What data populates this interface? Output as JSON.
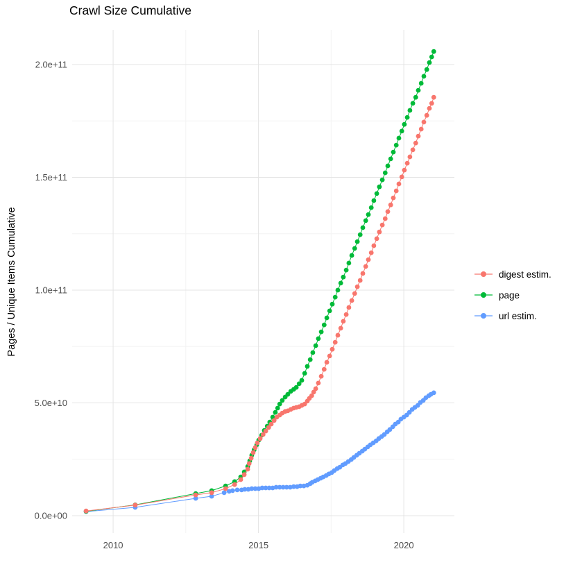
{
  "title": "Crawl Size Cumulative",
  "y_axis_title": "Pages / Unique Items Cumulative",
  "chart_data": {
    "type": "line",
    "title": "Crawl Size Cumulative",
    "xlabel": "",
    "ylabel": "Pages / Unique Items Cumulative",
    "xlim": [
      2008.59,
      2021.74
    ],
    "ylim": [
      -7700000000.0,
      215400000000.0
    ],
    "grid": true,
    "legend_position": "right",
    "marker": "point",
    "x_ticks": [
      {
        "value": 2010,
        "label": "2010"
      },
      {
        "value": 2015,
        "label": "2015"
      },
      {
        "value": 2020,
        "label": "2020"
      }
    ],
    "x_minor_ticks": [
      2012.5,
      2017.5
    ],
    "y_ticks": [
      {
        "value": 0,
        "label": "0.0e+00"
      },
      {
        "value": 50000000000.0,
        "label": "5.0e+10"
      },
      {
        "value": 100000000000.0,
        "label": "1.0e+11"
      },
      {
        "value": 150000000000.0,
        "label": "1.5e+11"
      },
      {
        "value": 200000000000.0,
        "label": "2.0e+11"
      }
    ],
    "y_minor_ticks": [
      25000000000.0,
      75000000000.0,
      125000000000.0,
      175000000000.0
    ],
    "colors": {
      "grid_major": "#E4E4E4",
      "grid_minor": "#F3F3F3",
      "tick_text": "#4D4D4D",
      "text": "#000000"
    },
    "series": [
      {
        "name": "digest estim.",
        "color": "#F8766D",
        "points": [
          [
            2009.07,
            2100000000.0
          ],
          [
            2010.76,
            4700000000.0
          ],
          [
            2012.84,
            9200000000.0
          ],
          [
            2013.39,
            10200000000.0
          ],
          [
            2013.87,
            12000000000.0
          ],
          [
            2014.18,
            13800000000.0
          ],
          [
            2014.39,
            16000000000.0
          ],
          [
            2014.51,
            18200000000.0
          ],
          [
            2014.63,
            20600000000.0
          ],
          [
            2014.68,
            23100000000.0
          ],
          [
            2014.75,
            25500000000.0
          ],
          [
            2014.82,
            28000000000.0
          ],
          [
            2014.89,
            30200000000.0
          ],
          [
            2014.96,
            32300000000.0
          ],
          [
            2015.06,
            34200000000.0
          ],
          [
            2015.16,
            36000000000.0
          ],
          [
            2015.25,
            37500000000.0
          ],
          [
            2015.35,
            39100000000.0
          ],
          [
            2015.44,
            40600000000.0
          ],
          [
            2015.54,
            42200000000.0
          ],
          [
            2015.63,
            43700000000.0
          ],
          [
            2015.73,
            44600000000.0
          ],
          [
            2015.82,
            45500000000.0
          ],
          [
            2015.92,
            46200000000.0
          ],
          [
            2016.01,
            46500000000.0
          ],
          [
            2016.11,
            47100000000.0
          ],
          [
            2016.21,
            47700000000.0
          ],
          [
            2016.3,
            48000000000.0
          ],
          [
            2016.4,
            48300000000.0
          ],
          [
            2016.49,
            48900000000.0
          ],
          [
            2016.59,
            49500000000.0
          ],
          [
            2016.68,
            50800000000.0
          ],
          [
            2016.75,
            52000000000.0
          ],
          [
            2016.83,
            53200000000.0
          ],
          [
            2016.9,
            54800000000.0
          ],
          [
            2016.97,
            56300000000.0
          ],
          [
            2017.06,
            58800000000.0
          ],
          [
            2017.16,
            61800000000.0
          ],
          [
            2017.26,
            64900000000.0
          ],
          [
            2017.35,
            68000000000.0
          ],
          [
            2017.45,
            70800000000.0
          ],
          [
            2017.54,
            73800000000.0
          ],
          [
            2017.64,
            76900000000.0
          ],
          [
            2017.73,
            80000000000.0
          ],
          [
            2017.83,
            83100000000.0
          ],
          [
            2017.92,
            86200000000.0
          ],
          [
            2018.02,
            89200000000.0
          ],
          [
            2018.11,
            92300000000.0
          ],
          [
            2018.21,
            95400000000.0
          ],
          [
            2018.31,
            98500000000.0
          ],
          [
            2018.4,
            101500000000.0
          ],
          [
            2018.5,
            104300000000.0
          ],
          [
            2018.59,
            107400000000.0
          ],
          [
            2018.69,
            110500000000.0
          ],
          [
            2018.78,
            113500000000.0
          ],
          [
            2018.88,
            116600000000.0
          ],
          [
            2018.97,
            119700000000.0
          ],
          [
            2019.07,
            122800000000.0
          ],
          [
            2019.16,
            125800000000.0
          ],
          [
            2019.26,
            128900000000.0
          ],
          [
            2019.36,
            131700000000.0
          ],
          [
            2019.45,
            134800000000.0
          ],
          [
            2019.55,
            137800000000.0
          ],
          [
            2019.64,
            140900000000.0
          ],
          [
            2019.74,
            144000000000.0
          ],
          [
            2019.83,
            147100000000.0
          ],
          [
            2019.93,
            150200000000.0
          ],
          [
            2020.02,
            153200000000.0
          ],
          [
            2020.12,
            156300000000.0
          ],
          [
            2020.21,
            159100000000.0
          ],
          [
            2020.31,
            162200000000.0
          ],
          [
            2020.41,
            165200000000.0
          ],
          [
            2020.5,
            168300000000.0
          ],
          [
            2020.6,
            171400000000.0
          ],
          [
            2020.69,
            174500000000.0
          ],
          [
            2020.79,
            177500000000.0
          ],
          [
            2020.88,
            180600000000.0
          ],
          [
            2020.96,
            182800000000.0
          ],
          [
            2021.03,
            185500000000.0
          ]
        ]
      },
      {
        "name": "page",
        "color": "#00BA38",
        "points": [
          [
            2009.07,
            1900000000.0
          ],
          [
            2010.76,
            4800000000.0
          ],
          [
            2012.84,
            9800000000.0
          ],
          [
            2013.39,
            11100000000.0
          ],
          [
            2013.87,
            13200000000.0
          ],
          [
            2014.18,
            15100000000.0
          ],
          [
            2014.39,
            17200000000.0
          ],
          [
            2014.51,
            19400000000.0
          ],
          [
            2014.63,
            21800000000.0
          ],
          [
            2014.7,
            24300000000.0
          ],
          [
            2014.77,
            26800000000.0
          ],
          [
            2014.85,
            29200000000.0
          ],
          [
            2014.94,
            31400000000.0
          ],
          [
            2015.01,
            33500000000.0
          ],
          [
            2015.11,
            35700000000.0
          ],
          [
            2015.2,
            37800000000.0
          ],
          [
            2015.3,
            39700000000.0
          ],
          [
            2015.39,
            41500000000.0
          ],
          [
            2015.49,
            43700000000.0
          ],
          [
            2015.58,
            45800000000.0
          ],
          [
            2015.66,
            47700000000.0
          ],
          [
            2015.73,
            49500000000.0
          ],
          [
            2015.82,
            51100000000.0
          ],
          [
            2015.92,
            52600000000.0
          ],
          [
            2016.01,
            53800000000.0
          ],
          [
            2016.11,
            55100000000.0
          ],
          [
            2016.21,
            56000000000.0
          ],
          [
            2016.3,
            56900000000.0
          ],
          [
            2016.4,
            58500000000.0
          ],
          [
            2016.49,
            60000000000.0
          ],
          [
            2016.59,
            63100000000.0
          ],
          [
            2016.68,
            66200000000.0
          ],
          [
            2016.78,
            69200000000.0
          ],
          [
            2016.87,
            72300000000.0
          ],
          [
            2016.97,
            75400000000.0
          ],
          [
            2017.06,
            78500000000.0
          ],
          [
            2017.16,
            81500000000.0
          ],
          [
            2017.26,
            84600000000.0
          ],
          [
            2017.35,
            87700000000.0
          ],
          [
            2017.45,
            90800000000.0
          ],
          [
            2017.54,
            93800000000.0
          ],
          [
            2017.64,
            96900000000.0
          ],
          [
            2017.73,
            100000000000.0
          ],
          [
            2017.83,
            103100000000.0
          ],
          [
            2017.92,
            105800000000.0
          ],
          [
            2018.02,
            108900000000.0
          ],
          [
            2018.11,
            112000000000.0
          ],
          [
            2018.21,
            115400000000.0
          ],
          [
            2018.31,
            118500000000.0
          ],
          [
            2018.4,
            121500000000.0
          ],
          [
            2018.5,
            124600000000.0
          ],
          [
            2018.59,
            127700000000.0
          ],
          [
            2018.69,
            130800000000.0
          ],
          [
            2018.78,
            133500000000.0
          ],
          [
            2018.88,
            136600000000.0
          ],
          [
            2018.97,
            139700000000.0
          ],
          [
            2019.07,
            142800000000.0
          ],
          [
            2019.16,
            145800000000.0
          ],
          [
            2019.26,
            148900000000.0
          ],
          [
            2019.36,
            152000000000.0
          ],
          [
            2019.45,
            155100000000.0
          ],
          [
            2019.55,
            158200000000.0
          ],
          [
            2019.64,
            161200000000.0
          ],
          [
            2019.74,
            164300000000.0
          ],
          [
            2019.83,
            167400000000.0
          ],
          [
            2019.93,
            170500000000.0
          ],
          [
            2020.02,
            173500000000.0
          ],
          [
            2020.12,
            176600000000.0
          ],
          [
            2020.21,
            179700000000.0
          ],
          [
            2020.31,
            182800000000.0
          ],
          [
            2020.41,
            185500000000.0
          ],
          [
            2020.5,
            188600000000.0
          ],
          [
            2020.6,
            191700000000.0
          ],
          [
            2020.69,
            194800000000.0
          ],
          [
            2020.79,
            197800000000.0
          ],
          [
            2020.88,
            200900000000.0
          ],
          [
            2020.96,
            203400000000.0
          ],
          [
            2021.03,
            205800000000.0
          ]
        ]
      },
      {
        "name": "url estim.",
        "color": "#619CFF",
        "points": [
          [
            2009.07,
            1800000000.0
          ],
          [
            2010.76,
            3700000000.0
          ],
          [
            2012.84,
            7700000000.0
          ],
          [
            2013.39,
            8600000000.0
          ],
          [
            2013.82,
            10200000000.0
          ],
          [
            2013.99,
            10800000000.0
          ],
          [
            2014.11,
            11100000000.0
          ],
          [
            2014.27,
            11400000000.0
          ],
          [
            2014.42,
            11400000000.0
          ],
          [
            2014.53,
            11700000000.0
          ],
          [
            2014.65,
            11700000000.0
          ],
          [
            2014.77,
            12000000000.0
          ],
          [
            2014.89,
            12000000000.0
          ],
          [
            2015.01,
            12000000000.0
          ],
          [
            2015.13,
            12300000000.0
          ],
          [
            2015.25,
            12300000000.0
          ],
          [
            2015.37,
            12300000000.0
          ],
          [
            2015.49,
            12300000000.0
          ],
          [
            2015.61,
            12600000000.0
          ],
          [
            2015.73,
            12600000000.0
          ],
          [
            2015.85,
            12600000000.0
          ],
          [
            2015.97,
            12600000000.0
          ],
          [
            2016.09,
            12600000000.0
          ],
          [
            2016.21,
            12900000000.0
          ],
          [
            2016.33,
            12900000000.0
          ],
          [
            2016.44,
            13200000000.0
          ],
          [
            2016.56,
            13200000000.0
          ],
          [
            2016.68,
            13500000000.0
          ],
          [
            2016.78,
            14200000000.0
          ],
          [
            2016.85,
            14800000000.0
          ],
          [
            2016.95,
            15400000000.0
          ],
          [
            2017.04,
            16000000000.0
          ],
          [
            2017.14,
            16600000000.0
          ],
          [
            2017.23,
            17200000000.0
          ],
          [
            2017.33,
            17800000000.0
          ],
          [
            2017.42,
            18500000000.0
          ],
          [
            2017.52,
            19100000000.0
          ],
          [
            2017.61,
            20000000000.0
          ],
          [
            2017.71,
            20900000000.0
          ],
          [
            2017.8,
            21500000000.0
          ],
          [
            2017.9,
            22500000000.0
          ],
          [
            2017.99,
            23100000000.0
          ],
          [
            2018.09,
            24000000000.0
          ],
          [
            2018.19,
            24900000000.0
          ],
          [
            2018.28,
            25800000000.0
          ],
          [
            2018.38,
            26800000000.0
          ],
          [
            2018.47,
            27700000000.0
          ],
          [
            2018.57,
            28600000000.0
          ],
          [
            2018.66,
            29500000000.0
          ],
          [
            2018.76,
            30500000000.0
          ],
          [
            2018.85,
            31400000000.0
          ],
          [
            2018.95,
            32300000000.0
          ],
          [
            2019.05,
            33200000000.0
          ],
          [
            2019.14,
            34200000000.0
          ],
          [
            2019.24,
            35100000000.0
          ],
          [
            2019.33,
            36000000000.0
          ],
          [
            2019.43,
            37200000000.0
          ],
          [
            2019.52,
            38200000000.0
          ],
          [
            2019.62,
            39400000000.0
          ],
          [
            2019.71,
            40600000000.0
          ],
          [
            2019.81,
            41500000000.0
          ],
          [
            2019.9,
            42800000000.0
          ],
          [
            2020.0,
            43700000000.0
          ],
          [
            2020.1,
            44600000000.0
          ],
          [
            2020.19,
            45800000000.0
          ],
          [
            2020.29,
            47100000000.0
          ],
          [
            2020.38,
            48000000000.0
          ],
          [
            2020.48,
            48900000000.0
          ],
          [
            2020.57,
            50200000000.0
          ],
          [
            2020.67,
            51100000000.0
          ],
          [
            2020.76,
            52300000000.0
          ],
          [
            2020.86,
            53200000000.0
          ],
          [
            2020.93,
            53800000000.0
          ],
          [
            2021.03,
            54500000000.0
          ]
        ]
      }
    ]
  }
}
